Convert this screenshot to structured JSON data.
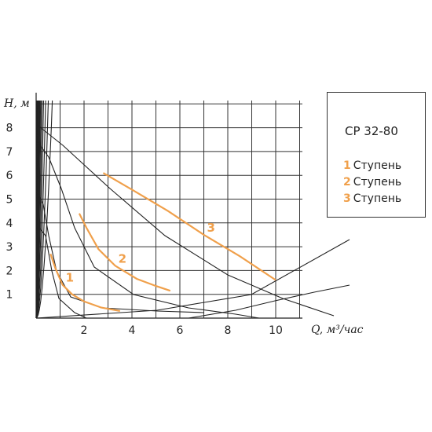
{
  "chart_data": {
    "type": "line",
    "title": "",
    "xlabel": "Q, м³/час",
    "ylabel": "H, м",
    "xlim": [
      0,
      13
    ],
    "ylim": [
      0,
      9
    ],
    "x_ticks": [
      "2",
      "4",
      "6",
      "8",
      "10"
    ],
    "y_ticks": [
      "1",
      "2",
      "3",
      "4",
      "5",
      "6",
      "7",
      "8"
    ],
    "grid": true,
    "legend_position": "top-right",
    "legend_title": "CP 32-80",
    "series_color": "#f0a04b",
    "series": [
      {
        "name": "Ступень",
        "num": "1",
        "label": "1",
        "x": [
          0.6,
          0.8,
          1.1,
          1.5,
          2.0,
          2.7,
          3.5
        ],
        "y": [
          2.7,
          2.1,
          1.4,
          1.0,
          0.7,
          0.45,
          0.3
        ]
      },
      {
        "name": "Ступень",
        "num": "2",
        "label": "2",
        "x": [
          1.8,
          2.1,
          2.6,
          3.3,
          4.2,
          5.0,
          5.6
        ],
        "y": [
          4.4,
          3.8,
          2.9,
          2.2,
          1.65,
          1.35,
          1.15
        ]
      },
      {
        "name": "Ступень",
        "num": "3",
        "label": "3",
        "x": [
          2.8,
          4.0,
          5.5,
          7.0,
          8.5,
          10.0
        ],
        "y": [
          6.1,
          5.4,
          4.5,
          3.5,
          2.6,
          1.6
        ]
      }
    ],
    "background_curves": "pump family and system curves (unlabeled)"
  }
}
